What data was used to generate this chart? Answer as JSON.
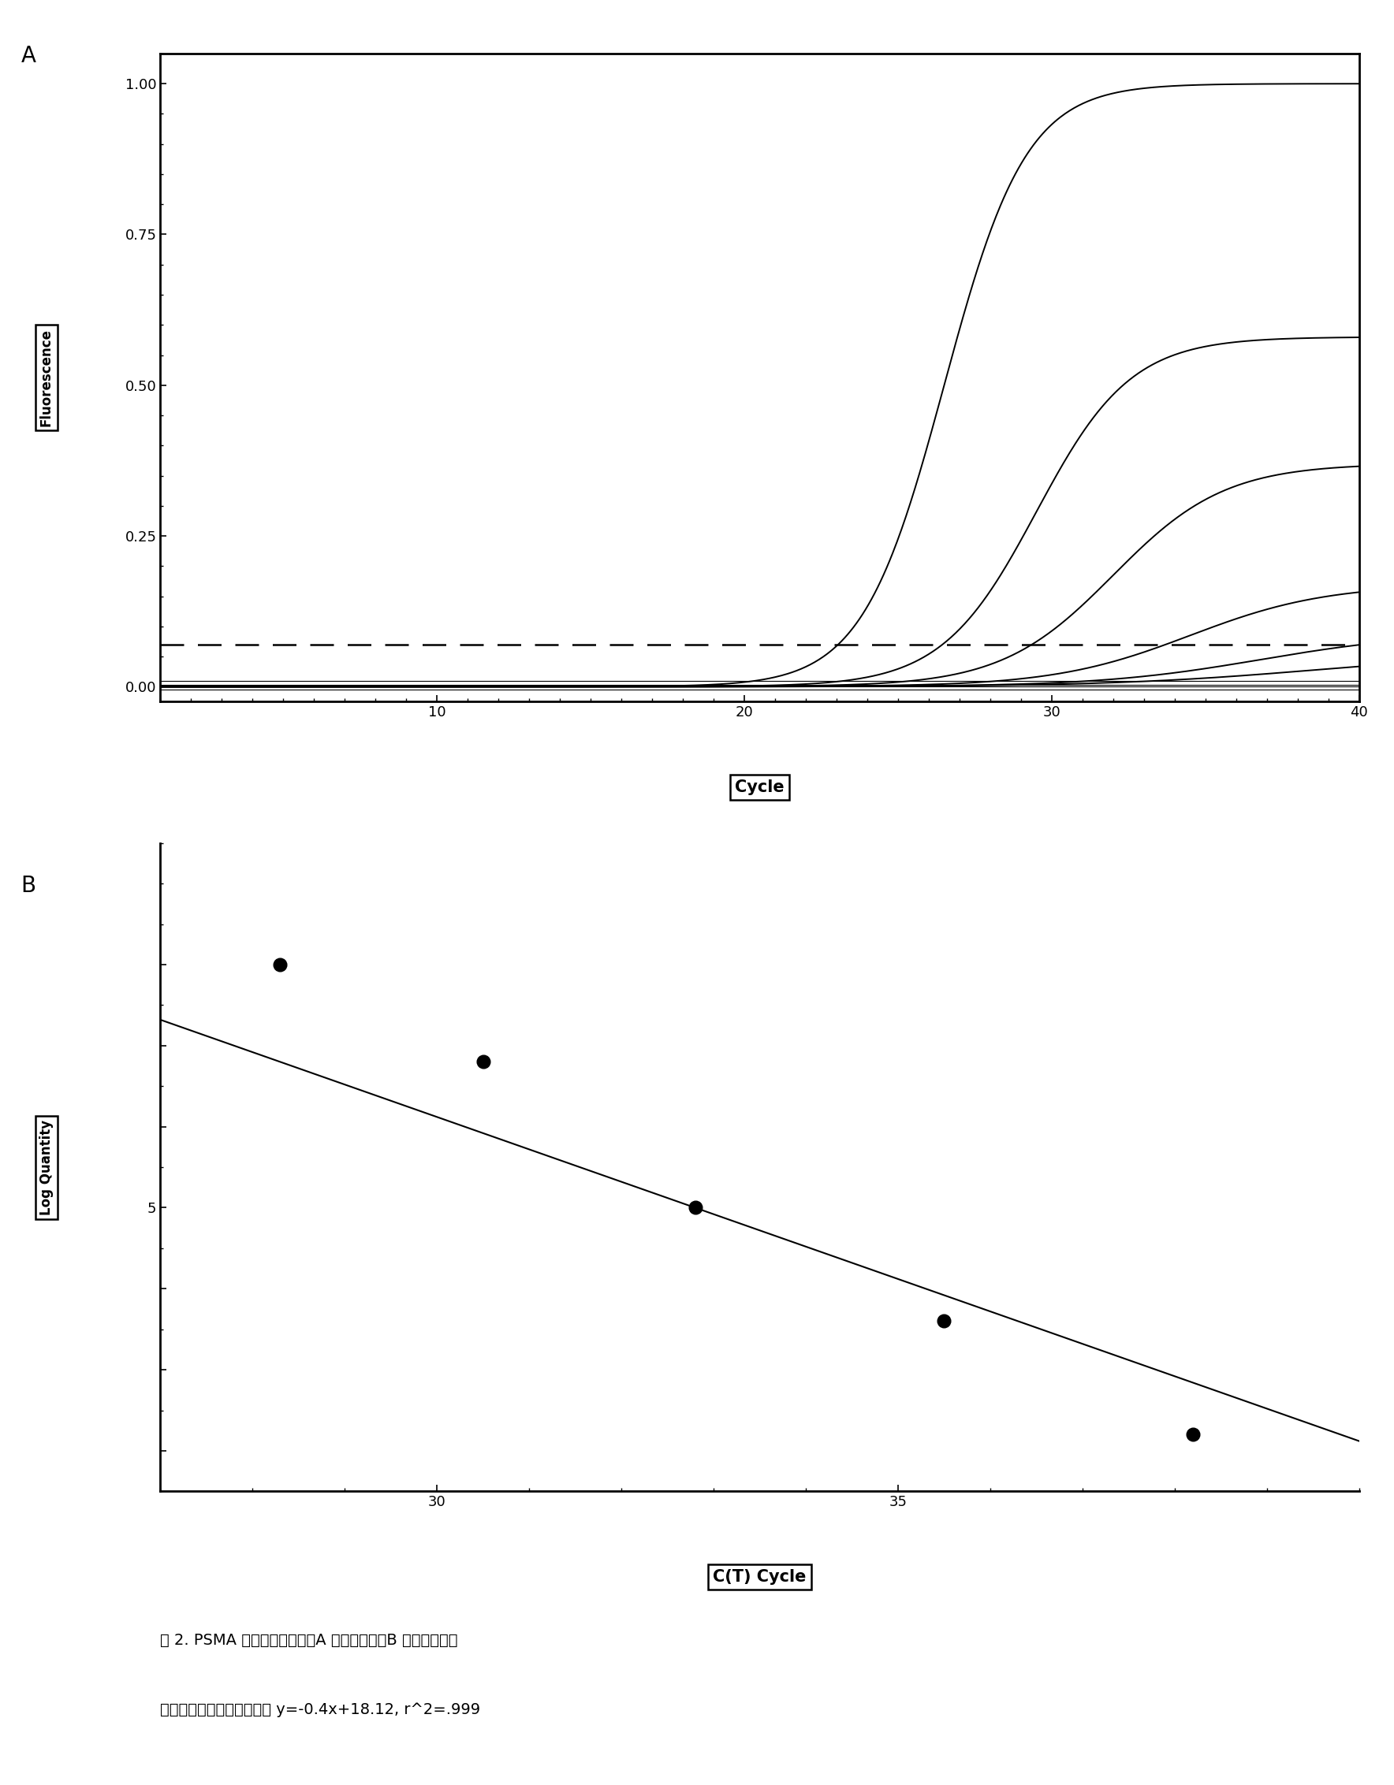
{
  "panel_A": {
    "xlabel": "Cycle",
    "ylabel": "Fluorescence",
    "xlim": [
      1,
      40
    ],
    "ylim": [
      -0.025,
      1.05
    ],
    "xticks": [
      10,
      20,
      30,
      40
    ],
    "yticks": [
      0,
      0.25,
      0.5,
      0.75,
      1.0
    ],
    "threshold_y": 0.07,
    "curves": [
      {
        "L": 1.0,
        "k": 0.75,
        "x0": 26.5
      },
      {
        "L": 0.58,
        "k": 0.65,
        "x0": 29.5
      },
      {
        "L": 0.37,
        "k": 0.55,
        "x0": 32.0
      },
      {
        "L": 0.17,
        "k": 0.45,
        "x0": 34.5
      },
      {
        "L": 0.09,
        "k": 0.38,
        "x0": 36.8
      },
      {
        "L": 0.055,
        "k": 0.3,
        "x0": 38.5
      }
    ],
    "noise_curves": [
      {
        "base": 0.01
      },
      {
        "base": -0.005
      },
      {
        "base": 0.003
      },
      {
        "base": 0.0
      }
    ]
  },
  "panel_B": {
    "xlabel": "C(T) Cycle",
    "ylabel": "Log Quantity",
    "xlim": [
      27.0,
      40.0
    ],
    "ylim": [
      1.5,
      9.5
    ],
    "xticks": [
      30,
      35
    ],
    "ytick_positions": [
      2,
      3,
      4,
      5,
      6,
      7,
      8
    ],
    "ytick_labels": [
      "",
      "",
      "",
      "5",
      "",
      "",
      ""
    ],
    "points_x": [
      28.3,
      30.5,
      32.8,
      35.5,
      38.2
    ],
    "points_y": [
      8.0,
      6.8,
      5.0,
      3.6,
      2.2
    ],
    "slope": -0.4,
    "intercept": 18.12,
    "line_x_start": 27.0,
    "line_x_end": 40.2
  },
  "label_A": "A",
  "label_B": "B",
  "caption_line1": "图 2. PSMA 标准曲线的制备。A 荧光曲线图；B 标准曲线图。",
  "caption_line2": "根据标准曲线求得回归方程 y=-0.4x+18.12, r^2=.999"
}
